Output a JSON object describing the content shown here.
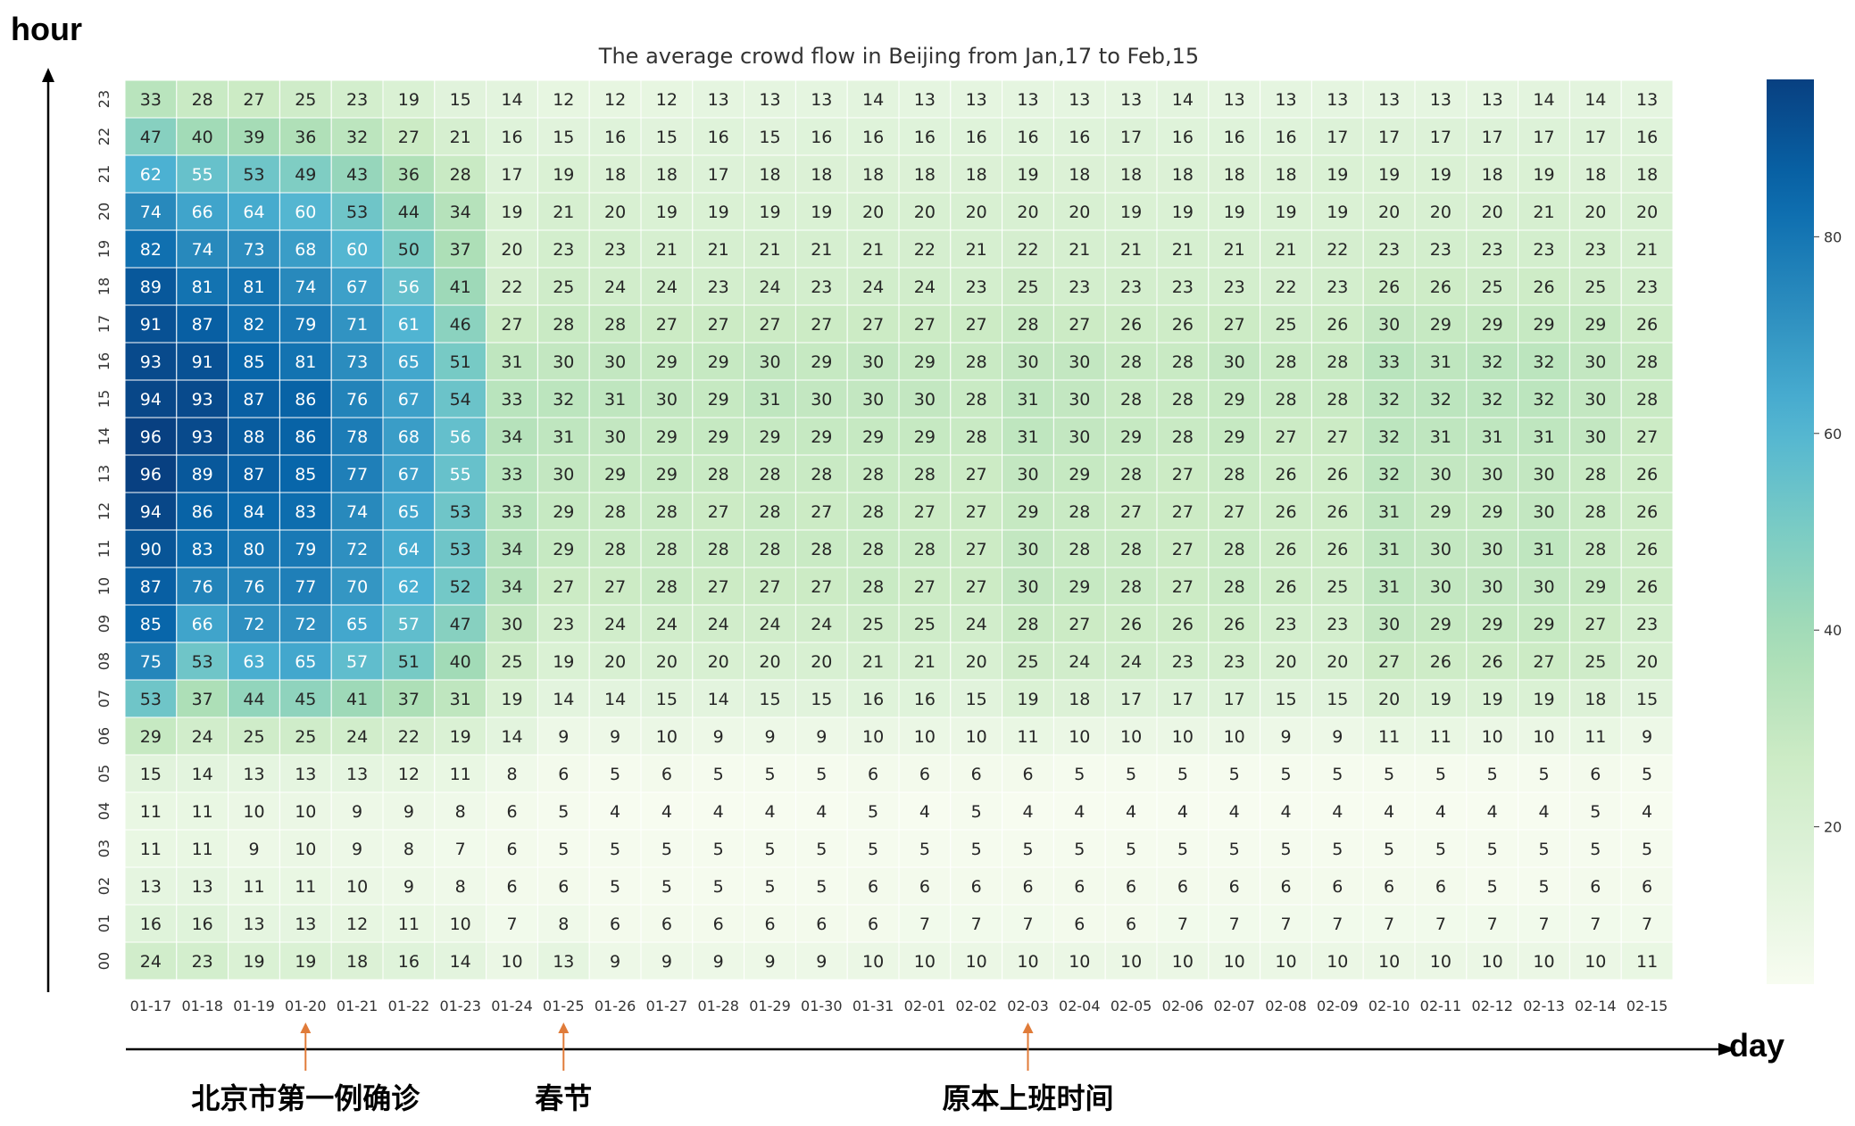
{
  "chart_data": {
    "type": "heatmap",
    "title": "The average crowd flow in Beijing from Jan,17 to Feb,15",
    "xlabel": "day",
    "ylabel": "hour",
    "x": [
      "01-17",
      "01-18",
      "01-19",
      "01-20",
      "01-21",
      "01-22",
      "01-23",
      "01-24",
      "01-25",
      "01-26",
      "01-27",
      "01-28",
      "01-29",
      "01-30",
      "01-31",
      "02-01",
      "02-02",
      "02-03",
      "02-04",
      "02-05",
      "02-06",
      "02-07",
      "02-08",
      "02-09",
      "02-10",
      "02-11",
      "02-12",
      "02-13",
      "02-14",
      "02-15"
    ],
    "y": [
      "23",
      "22",
      "21",
      "20",
      "19",
      "18",
      "17",
      "16",
      "15",
      "14",
      "13",
      "12",
      "11",
      "10",
      "09",
      "08",
      "07",
      "06",
      "05",
      "04",
      "03",
      "02",
      "01",
      "00"
    ],
    "values": [
      [
        33,
        28,
        27,
        25,
        23,
        19,
        15,
        14,
        12,
        12,
        12,
        13,
        13,
        13,
        14,
        13,
        13,
        13,
        13,
        13,
        14,
        13,
        13,
        13,
        13,
        13,
        13,
        14,
        14,
        13
      ],
      [
        47,
        40,
        39,
        36,
        32,
        27,
        21,
        16,
        15,
        16,
        15,
        16,
        15,
        16,
        16,
        16,
        16,
        16,
        16,
        17,
        16,
        16,
        16,
        17,
        17,
        17,
        17,
        17,
        17,
        16
      ],
      [
        62,
        55,
        53,
        49,
        43,
        36,
        28,
        17,
        19,
        18,
        18,
        17,
        18,
        18,
        18,
        18,
        18,
        19,
        18,
        18,
        18,
        18,
        18,
        19,
        19,
        19,
        18,
        19,
        18,
        18
      ],
      [
        74,
        66,
        64,
        60,
        53,
        44,
        34,
        19,
        21,
        20,
        19,
        19,
        19,
        19,
        20,
        20,
        20,
        20,
        20,
        19,
        19,
        19,
        19,
        19,
        20,
        20,
        20,
        21,
        20,
        20
      ],
      [
        82,
        74,
        73,
        68,
        60,
        50,
        37,
        20,
        23,
        23,
        21,
        21,
        21,
        21,
        21,
        22,
        21,
        22,
        21,
        21,
        21,
        21,
        21,
        22,
        23,
        23,
        23,
        23,
        23,
        21
      ],
      [
        89,
        81,
        81,
        74,
        67,
        56,
        41,
        22,
        25,
        24,
        24,
        23,
        24,
        23,
        24,
        24,
        23,
        25,
        23,
        23,
        23,
        23,
        22,
        23,
        26,
        26,
        25,
        26,
        25,
        23
      ],
      [
        91,
        87,
        82,
        79,
        71,
        61,
        46,
        27,
        28,
        28,
        27,
        27,
        27,
        27,
        27,
        27,
        27,
        28,
        27,
        26,
        26,
        27,
        25,
        26,
        30,
        29,
        29,
        29,
        29,
        26
      ],
      [
        93,
        91,
        85,
        81,
        73,
        65,
        51,
        31,
        30,
        30,
        29,
        29,
        30,
        29,
        30,
        29,
        28,
        30,
        30,
        28,
        28,
        30,
        28,
        28,
        33,
        31,
        32,
        32,
        30,
        28
      ],
      [
        94,
        93,
        87,
        86,
        76,
        67,
        54,
        33,
        32,
        31,
        30,
        29,
        31,
        30,
        30,
        30,
        28,
        31,
        30,
        28,
        28,
        29,
        28,
        28,
        32,
        32,
        32,
        32,
        30,
        28
      ],
      [
        96,
        93,
        88,
        86,
        78,
        68,
        56,
        34,
        31,
        30,
        29,
        29,
        29,
        29,
        29,
        29,
        28,
        31,
        30,
        29,
        28,
        29,
        27,
        27,
        32,
        31,
        31,
        31,
        30,
        27
      ],
      [
        96,
        89,
        87,
        85,
        77,
        67,
        55,
        33,
        30,
        29,
        29,
        28,
        28,
        28,
        28,
        28,
        27,
        30,
        29,
        28,
        27,
        28,
        26,
        26,
        32,
        30,
        30,
        30,
        28,
        26
      ],
      [
        94,
        86,
        84,
        83,
        74,
        65,
        53,
        33,
        29,
        28,
        28,
        27,
        28,
        27,
        28,
        27,
        27,
        29,
        28,
        27,
        27,
        27,
        26,
        26,
        31,
        29,
        29,
        30,
        28,
        26
      ],
      [
        90,
        83,
        80,
        79,
        72,
        64,
        53,
        34,
        29,
        28,
        28,
        28,
        28,
        28,
        28,
        28,
        27,
        30,
        28,
        28,
        27,
        28,
        26,
        26,
        31,
        30,
        30,
        31,
        28,
        26
      ],
      [
        87,
        76,
        76,
        77,
        70,
        62,
        52,
        34,
        27,
        27,
        28,
        27,
        27,
        27,
        28,
        27,
        27,
        30,
        29,
        28,
        27,
        28,
        26,
        25,
        31,
        30,
        30,
        30,
        29,
        26
      ],
      [
        85,
        66,
        72,
        72,
        65,
        57,
        47,
        30,
        23,
        24,
        24,
        24,
        24,
        24,
        25,
        25,
        24,
        28,
        27,
        26,
        26,
        26,
        23,
        23,
        30,
        29,
        29,
        29,
        27,
        23
      ],
      [
        75,
        53,
        63,
        65,
        57,
        51,
        40,
        25,
        19,
        20,
        20,
        20,
        20,
        20,
        21,
        21,
        20,
        25,
        24,
        24,
        23,
        23,
        20,
        20,
        27,
        26,
        26,
        27,
        25,
        20
      ],
      [
        53,
        37,
        44,
        45,
        41,
        37,
        31,
        19,
        14,
        14,
        15,
        14,
        15,
        15,
        16,
        16,
        15,
        19,
        18,
        17,
        17,
        17,
        15,
        15,
        20,
        19,
        19,
        19,
        18,
        15
      ],
      [
        29,
        24,
        25,
        25,
        24,
        22,
        19,
        14,
        9,
        9,
        10,
        9,
        9,
        9,
        10,
        10,
        10,
        11,
        10,
        10,
        10,
        10,
        9,
        9,
        11,
        11,
        10,
        10,
        11,
        9
      ],
      [
        15,
        14,
        13,
        13,
        13,
        12,
        11,
        8,
        6,
        5,
        6,
        5,
        5,
        5,
        6,
        6,
        6,
        6,
        5,
        5,
        5,
        5,
        5,
        5,
        5,
        5,
        5,
        5,
        6,
        5
      ],
      [
        11,
        11,
        10,
        10,
        9,
        9,
        8,
        6,
        5,
        4,
        4,
        4,
        4,
        4,
        5,
        4,
        5,
        4,
        4,
        4,
        4,
        4,
        4,
        4,
        4,
        4,
        4,
        4,
        5,
        4
      ],
      [
        11,
        11,
        9,
        10,
        9,
        8,
        7,
        6,
        5,
        5,
        5,
        5,
        5,
        5,
        5,
        5,
        5,
        5,
        5,
        5,
        5,
        5,
        5,
        5,
        5,
        5,
        5,
        5,
        5,
        5
      ],
      [
        13,
        13,
        11,
        11,
        10,
        9,
        8,
        6,
        6,
        5,
        5,
        5,
        5,
        5,
        6,
        6,
        6,
        6,
        6,
        6,
        6,
        6,
        6,
        6,
        6,
        6,
        5,
        5,
        6,
        6
      ],
      [
        16,
        16,
        13,
        13,
        12,
        11,
        10,
        7,
        8,
        6,
        6,
        6,
        6,
        6,
        6,
        7,
        7,
        7,
        6,
        6,
        7,
        7,
        7,
        7,
        7,
        7,
        7,
        7,
        7,
        7
      ],
      [
        24,
        23,
        19,
        19,
        18,
        16,
        14,
        10,
        13,
        9,
        9,
        9,
        9,
        9,
        10,
        10,
        10,
        10,
        10,
        10,
        10,
        10,
        10,
        10,
        10,
        10,
        10,
        10,
        10,
        11
      ]
    ],
    "colorbar": {
      "min": 4,
      "max": 96,
      "ticks": [
        20,
        40,
        60,
        80
      ],
      "colormap": "GnBu"
    },
    "annotations": [
      {
        "x": "01-20",
        "text": "北京市第一例确诊"
      },
      {
        "x": "01-25",
        "text": "春节"
      },
      {
        "x": "02-03",
        "text": "原本上班时间"
      }
    ],
    "arrow_color": "#e07b39"
  }
}
